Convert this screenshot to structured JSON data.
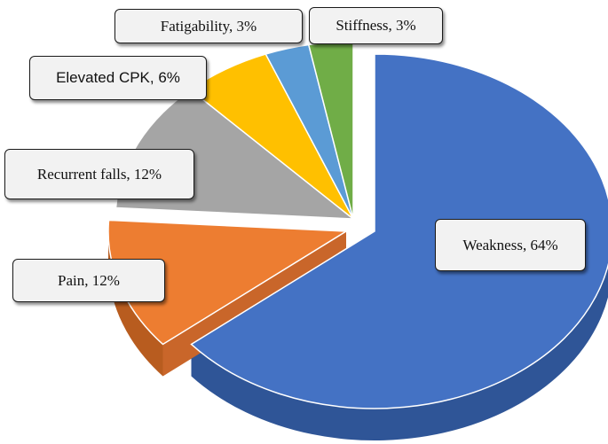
{
  "chart_data": {
    "type": "pie",
    "style": "3d-exploded",
    "title": "",
    "legend": "none",
    "slices": [
      {
        "label": "Weakness",
        "value": 64,
        "display": "Weakness, 64%",
        "color": "#4472c4",
        "side": "#2f5597"
      },
      {
        "label": "Pain",
        "value": 12,
        "display": "Pain, 12%",
        "color": "#ed7d31",
        "side": "#b85c1f"
      },
      {
        "label": "Recurrent falls",
        "value": 12,
        "display": "Recurrent falls, 12%",
        "color": "#a5a5a5",
        "side": "#7c7c7c"
      },
      {
        "label": "Elevated CPK",
        "value": 6,
        "display": "Elevated CPK, 6%",
        "color": "#ffc000",
        "side": "#c79500"
      },
      {
        "label": "Fatigability",
        "value": 3,
        "display": "Fatigability, 3%",
        "color": "#5b9bd5",
        "side": "#3f75a6"
      },
      {
        "label": "Stiffness",
        "value": 3,
        "display": "Stiffness, 3%",
        "color": "#70ad47",
        "side": "#4f7f30"
      }
    ]
  }
}
